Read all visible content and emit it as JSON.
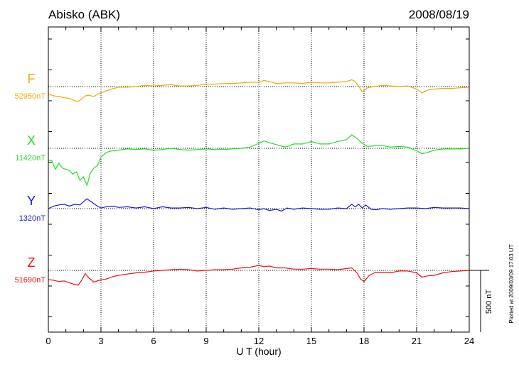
{
  "header": {
    "station": "Abisko (ABK)",
    "date": "2008/08/19"
  },
  "footer_note": "Plotted at 2009/03/09 17:03 UT",
  "chart_data": {
    "type": "line",
    "title": "Abisko (ABK)",
    "date": "2008/08/19",
    "xlabel": "U T (hour)",
    "xlim": [
      0,
      24
    ],
    "xticks": [
      0,
      3,
      6,
      9,
      12,
      15,
      18,
      21,
      24
    ],
    "grid": true,
    "scale_bar": {
      "label": "500 nT",
      "value_nT": 500
    },
    "series": [
      {
        "name": "F",
        "baseline_label": "52950nT",
        "baseline_nT": 52950,
        "color": "#f0a800",
        "hours": [
          0,
          0.3,
          0.6,
          0.9,
          1.2,
          1.5,
          1.7,
          1.9,
          2.1,
          2.3,
          2.6,
          2.9,
          3.2,
          3.6,
          4.0,
          4.5,
          5.0,
          5.5,
          6.0,
          6.5,
          7.0,
          7.5,
          8.0,
          8.5,
          9.0,
          9.5,
          10.0,
          10.5,
          11.0,
          11.5,
          12.0,
          12.3,
          12.6,
          13.0,
          13.5,
          14.0,
          14.5,
          15.0,
          15.5,
          16.0,
          16.5,
          17.0,
          17.3,
          17.5,
          17.7,
          17.9,
          18.2,
          18.6,
          19.0,
          19.5,
          20.0,
          20.5,
          21.0,
          21.3,
          21.7,
          22.0,
          22.5,
          23.0,
          23.5,
          24.0
        ],
        "values": [
          -60,
          -75,
          -80,
          -90,
          -95,
          -115,
          -120,
          -100,
          -75,
          -70,
          -80,
          -55,
          -40,
          -20,
          -5,
          -5,
          0,
          10,
          5,
          10,
          15,
          5,
          5,
          10,
          20,
          20,
          25,
          25,
          30,
          35,
          35,
          50,
          40,
          25,
          30,
          30,
          25,
          35,
          30,
          30,
          35,
          40,
          55,
          40,
          0,
          -40,
          -10,
          0,
          10,
          5,
          0,
          5,
          -20,
          -50,
          -25,
          -20,
          -15,
          -15,
          -10,
          -5
        ]
      },
      {
        "name": "X",
        "baseline_label": "11420nT",
        "baseline_nT": 11420,
        "color": "#22dd22",
        "hours": [
          0,
          0.2,
          0.4,
          0.6,
          0.8,
          1.0,
          1.2,
          1.4,
          1.6,
          1.8,
          2.0,
          2.2,
          2.4,
          2.6,
          2.8,
          3.0,
          3.3,
          3.6,
          4.0,
          4.5,
          5.0,
          5.5,
          6.0,
          6.5,
          7.0,
          7.5,
          8.0,
          8.5,
          9.0,
          9.5,
          10.0,
          10.5,
          11.0,
          11.5,
          12.0,
          12.3,
          12.6,
          13.0,
          13.5,
          14.0,
          14.5,
          15.0,
          15.5,
          16.0,
          16.5,
          17.0,
          17.3,
          17.6,
          17.9,
          18.2,
          18.6,
          19.0,
          19.5,
          20.0,
          20.5,
          21.0,
          21.3,
          21.6,
          22.0,
          22.5,
          23.0,
          23.5,
          24.0
        ],
        "values": [
          -95,
          -100,
          -170,
          -120,
          -160,
          -170,
          -180,
          -210,
          -190,
          -260,
          -230,
          -300,
          -200,
          -160,
          -140,
          -70,
          -35,
          -20,
          -15,
          -5,
          -10,
          -5,
          -15,
          -10,
          0,
          -10,
          -15,
          -10,
          -5,
          -10,
          -10,
          -5,
          0,
          10,
          40,
          60,
          45,
          30,
          10,
          35,
          35,
          55,
          35,
          35,
          55,
          70,
          110,
          80,
          40,
          15,
          20,
          25,
          10,
          15,
          10,
          -20,
          -45,
          -35,
          -15,
          -5,
          -5,
          -5,
          0
        ]
      },
      {
        "name": "Y",
        "baseline_label": "1320nT",
        "baseline_nT": 1320,
        "color": "#1a1acc",
        "hours": [
          0,
          0.3,
          0.6,
          0.9,
          1.2,
          1.5,
          1.8,
          2.0,
          2.2,
          2.4,
          2.6,
          2.8,
          3.0,
          3.3,
          3.7,
          4.0,
          4.5,
          5.0,
          5.5,
          6.0,
          6.5,
          7.0,
          7.5,
          8.0,
          8.5,
          9.0,
          9.5,
          10.0,
          10.5,
          11.0,
          11.5,
          12.0,
          12.3,
          12.6,
          13.0,
          13.3,
          13.6,
          14.0,
          14.5,
          15.0,
          15.5,
          16.0,
          16.5,
          17.0,
          17.3,
          17.5,
          17.7,
          17.9,
          18.1,
          18.4,
          18.7,
          19.0,
          19.5,
          20.0,
          20.5,
          21.0,
          21.5,
          22.0,
          22.5,
          23.0,
          23.5,
          24.0
        ],
        "values": [
          0,
          20,
          30,
          35,
          20,
          35,
          30,
          55,
          80,
          60,
          40,
          20,
          5,
          15,
          20,
          10,
          15,
          5,
          15,
          0,
          15,
          5,
          5,
          10,
          0,
          10,
          -5,
          5,
          -5,
          0,
          5,
          -10,
          0,
          -15,
          -5,
          -20,
          5,
          -5,
          5,
          0,
          -5,
          -5,
          5,
          0,
          35,
          15,
          35,
          5,
          30,
          -5,
          -10,
          0,
          -5,
          0,
          5,
          5,
          0,
          10,
          5,
          5,
          5,
          0
        ]
      },
      {
        "name": "Z",
        "baseline_label": "51690nT",
        "baseline_nT": 51690,
        "color": "#ee1111",
        "hours": [
          0,
          0.3,
          0.6,
          0.9,
          1.2,
          1.5,
          1.7,
          1.9,
          2.1,
          2.3,
          2.6,
          2.9,
          3.3,
          3.7,
          4.0,
          4.5,
          5.0,
          5.5,
          6.0,
          6.5,
          7.0,
          7.5,
          8.0,
          8.5,
          9.0,
          9.5,
          10.0,
          10.5,
          11.0,
          11.5,
          12.0,
          12.3,
          12.6,
          13.0,
          13.5,
          14.0,
          14.5,
          15.0,
          15.5,
          16.0,
          16.5,
          17.0,
          17.3,
          17.6,
          17.8,
          18.0,
          18.3,
          18.6,
          19.0,
          19.5,
          20.0,
          20.5,
          21.0,
          21.3,
          21.6,
          22.0,
          22.5,
          23.0,
          23.5,
          24.0
        ],
        "values": [
          -75,
          -80,
          -90,
          -85,
          -100,
          -115,
          -120,
          -80,
          -25,
          -60,
          -95,
          -80,
          -70,
          -50,
          -40,
          -30,
          -20,
          -15,
          -5,
          0,
          5,
          10,
          5,
          -5,
          0,
          5,
          5,
          10,
          20,
          25,
          40,
          30,
          35,
          20,
          20,
          10,
          10,
          15,
          10,
          10,
          5,
          15,
          20,
          -20,
          -70,
          -90,
          -40,
          -20,
          -15,
          -20,
          -5,
          -5,
          -20,
          -55,
          -45,
          -40,
          -20,
          -10,
          -5,
          0
        ]
      }
    ]
  }
}
